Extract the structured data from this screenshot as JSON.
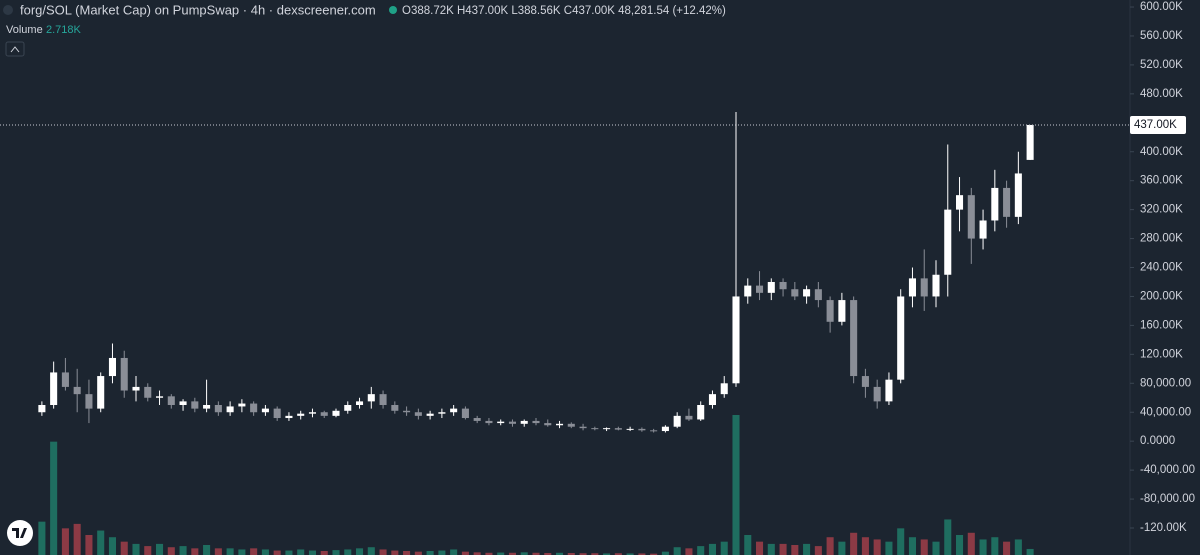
{
  "chart_data": {
    "type": "candlestick",
    "title": "forg/SOL (Market Cap) on PumpSwap · 4h · dexscreener.com",
    "ohlc_summary": "O388.72K H437.00K L388.56K C437.00K 48,281.54 (+12.42%)",
    "volume_label": "Volume",
    "volume_value_label": "2.718K",
    "up_color": "#ffffff",
    "down_color": "#8a8e97",
    "volume_up_color": "#1f6e60",
    "volume_down_color": "#8c3a45",
    "ylim": [
      -157300,
      609700
    ],
    "yticks": [
      {
        "value": 600000,
        "label": "600.00K"
      },
      {
        "value": 560000,
        "label": "560.00K"
      },
      {
        "value": 520000,
        "label": "520.00K"
      },
      {
        "value": 480000,
        "label": "480.00K"
      },
      {
        "value": 440000,
        "label": "440.00K"
      },
      {
        "value": 400000,
        "label": "400.00K"
      },
      {
        "value": 360000,
        "label": "360.00K"
      },
      {
        "value": 320000,
        "label": "320.00K"
      },
      {
        "value": 280000,
        "label": "280.00K"
      },
      {
        "value": 240000,
        "label": "240.00K"
      },
      {
        "value": 200000,
        "label": "200.00K"
      },
      {
        "value": 160000,
        "label": "160.00K"
      },
      {
        "value": 120000,
        "label": "120.00K"
      },
      {
        "value": 80000,
        "label": "80,000.00"
      },
      {
        "value": 40000,
        "label": "40,000.00"
      },
      {
        "value": 0,
        "label": "0.0000"
      },
      {
        "value": -40000,
        "label": "-40,000.00"
      },
      {
        "value": -80000,
        "label": "-80,000.00"
      },
      {
        "value": -120000,
        "label": "-120.00K"
      }
    ],
    "last_price": {
      "value": 437000,
      "label": "437.00K"
    },
    "volume_ylim": [
      0,
      90000
    ],
    "open": [
      40000,
      50000,
      95000,
      75000,
      65000,
      45000,
      90000,
      115000,
      70000,
      75000,
      60000,
      62000,
      50000,
      55000,
      45000,
      50000,
      40000,
      48000,
      52000,
      40000,
      45000,
      32000,
      35000,
      38000,
      40000,
      35000,
      42000,
      50000,
      55000,
      65000,
      50000,
      42000,
      40000,
      35000,
      38000,
      40000,
      45000,
      32000,
      28000,
      25000,
      27000,
      24000,
      28000,
      25000,
      22000,
      24000,
      20000,
      18000,
      17000,
      18000,
      16000,
      17000,
      15000,
      14000,
      20000,
      35000,
      30000,
      50000,
      65000,
      80000,
      200000,
      215000,
      205000,
      220000,
      210000,
      200000,
      210000,
      195000,
      165000,
      195000,
      90000,
      75000,
      55000,
      85000,
      200000,
      225000,
      200000,
      230000,
      320000,
      340000,
      280000,
      305000,
      350000,
      310000,
      388720
    ],
    "high": [
      55000,
      110000,
      115000,
      100000,
      85000,
      95000,
      135000,
      125000,
      90000,
      80000,
      70000,
      65000,
      58000,
      60000,
      85000,
      55000,
      55000,
      58000,
      55000,
      50000,
      48000,
      40000,
      42000,
      45000,
      42000,
      45000,
      55000,
      60000,
      75000,
      70000,
      55000,
      48000,
      45000,
      42000,
      45000,
      50000,
      48000,
      35000,
      32000,
      30000,
      30000,
      30000,
      32000,
      30000,
      28000,
      26000,
      24000,
      20000,
      19000,
      20000,
      20000,
      19000,
      17000,
      22000,
      40000,
      45000,
      55000,
      70000,
      90000,
      455000,
      225000,
      235000,
      225000,
      225000,
      220000,
      215000,
      220000,
      200000,
      205000,
      200000,
      100000,
      85000,
      95000,
      210000,
      240000,
      265000,
      250000,
      410000,
      365000,
      350000,
      320000,
      375000,
      360000,
      400000,
      437000
    ],
    "low": [
      35000,
      45000,
      70000,
      40000,
      25000,
      40000,
      80000,
      60000,
      55000,
      55000,
      50000,
      45000,
      42000,
      40000,
      40000,
      35000,
      35000,
      40000,
      35000,
      35000,
      28000,
      28000,
      30000,
      33000,
      32000,
      33000,
      38000,
      45000,
      45000,
      45000,
      38000,
      35000,
      30000,
      30000,
      32000,
      35000,
      30000,
      25000,
      22000,
      22000,
      20000,
      20000,
      22000,
      20000,
      18000,
      18000,
      15000,
      15000,
      14000,
      15000,
      14000,
      13000,
      12000,
      12000,
      18000,
      28000,
      28000,
      45000,
      60000,
      75000,
      190000,
      195000,
      195000,
      200000,
      195000,
      190000,
      185000,
      150000,
      160000,
      80000,
      60000,
      45000,
      50000,
      80000,
      185000,
      180000,
      185000,
      200000,
      290000,
      245000,
      265000,
      290000,
      295000,
      300000,
      388560
    ],
    "close": [
      50000,
      95000,
      75000,
      65000,
      45000,
      90000,
      115000,
      70000,
      75000,
      60000,
      62000,
      50000,
      55000,
      45000,
      50000,
      40000,
      48000,
      52000,
      40000,
      45000,
      32000,
      35000,
      38000,
      40000,
      35000,
      42000,
      50000,
      55000,
      65000,
      50000,
      42000,
      40000,
      35000,
      38000,
      40000,
      45000,
      32000,
      28000,
      25000,
      27000,
      24000,
      28000,
      25000,
      22000,
      24000,
      20000,
      18000,
      17000,
      18000,
      16000,
      17000,
      15000,
      14000,
      20000,
      35000,
      30000,
      50000,
      65000,
      80000,
      200000,
      215000,
      205000,
      220000,
      210000,
      200000,
      210000,
      195000,
      165000,
      195000,
      90000,
      75000,
      55000,
      85000,
      200000,
      225000,
      200000,
      230000,
      320000,
      340000,
      280000,
      305000,
      350000,
      310000,
      370000,
      437000
    ],
    "volume": [
      15000,
      51000,
      12000,
      14000,
      9000,
      11000,
      8000,
      6000,
      5000,
      4000,
      5000,
      3500,
      4000,
      3000,
      4500,
      3000,
      3000,
      2500,
      3000,
      2500,
      2000,
      2000,
      2500,
      2000,
      1800,
      2200,
      2500,
      3000,
      3500,
      2500,
      2000,
      1800,
      1500,
      1800,
      2000,
      2500,
      1500,
      1200,
      1000,
      1100,
      1000,
      1200,
      1000,
      900,
      1000,
      900,
      800,
      800,
      700,
      800,
      700,
      700,
      600,
      1500,
      3500,
      3000,
      4000,
      5000,
      6000,
      63000,
      9000,
      6000,
      5000,
      5000,
      4500,
      5000,
      4000,
      8000,
      6000,
      10000,
      8000,
      7000,
      6000,
      12000,
      8000,
      7000,
      6000,
      16000,
      9000,
      10000,
      7000,
      8000,
      6000,
      7000,
      2718
    ]
  }
}
